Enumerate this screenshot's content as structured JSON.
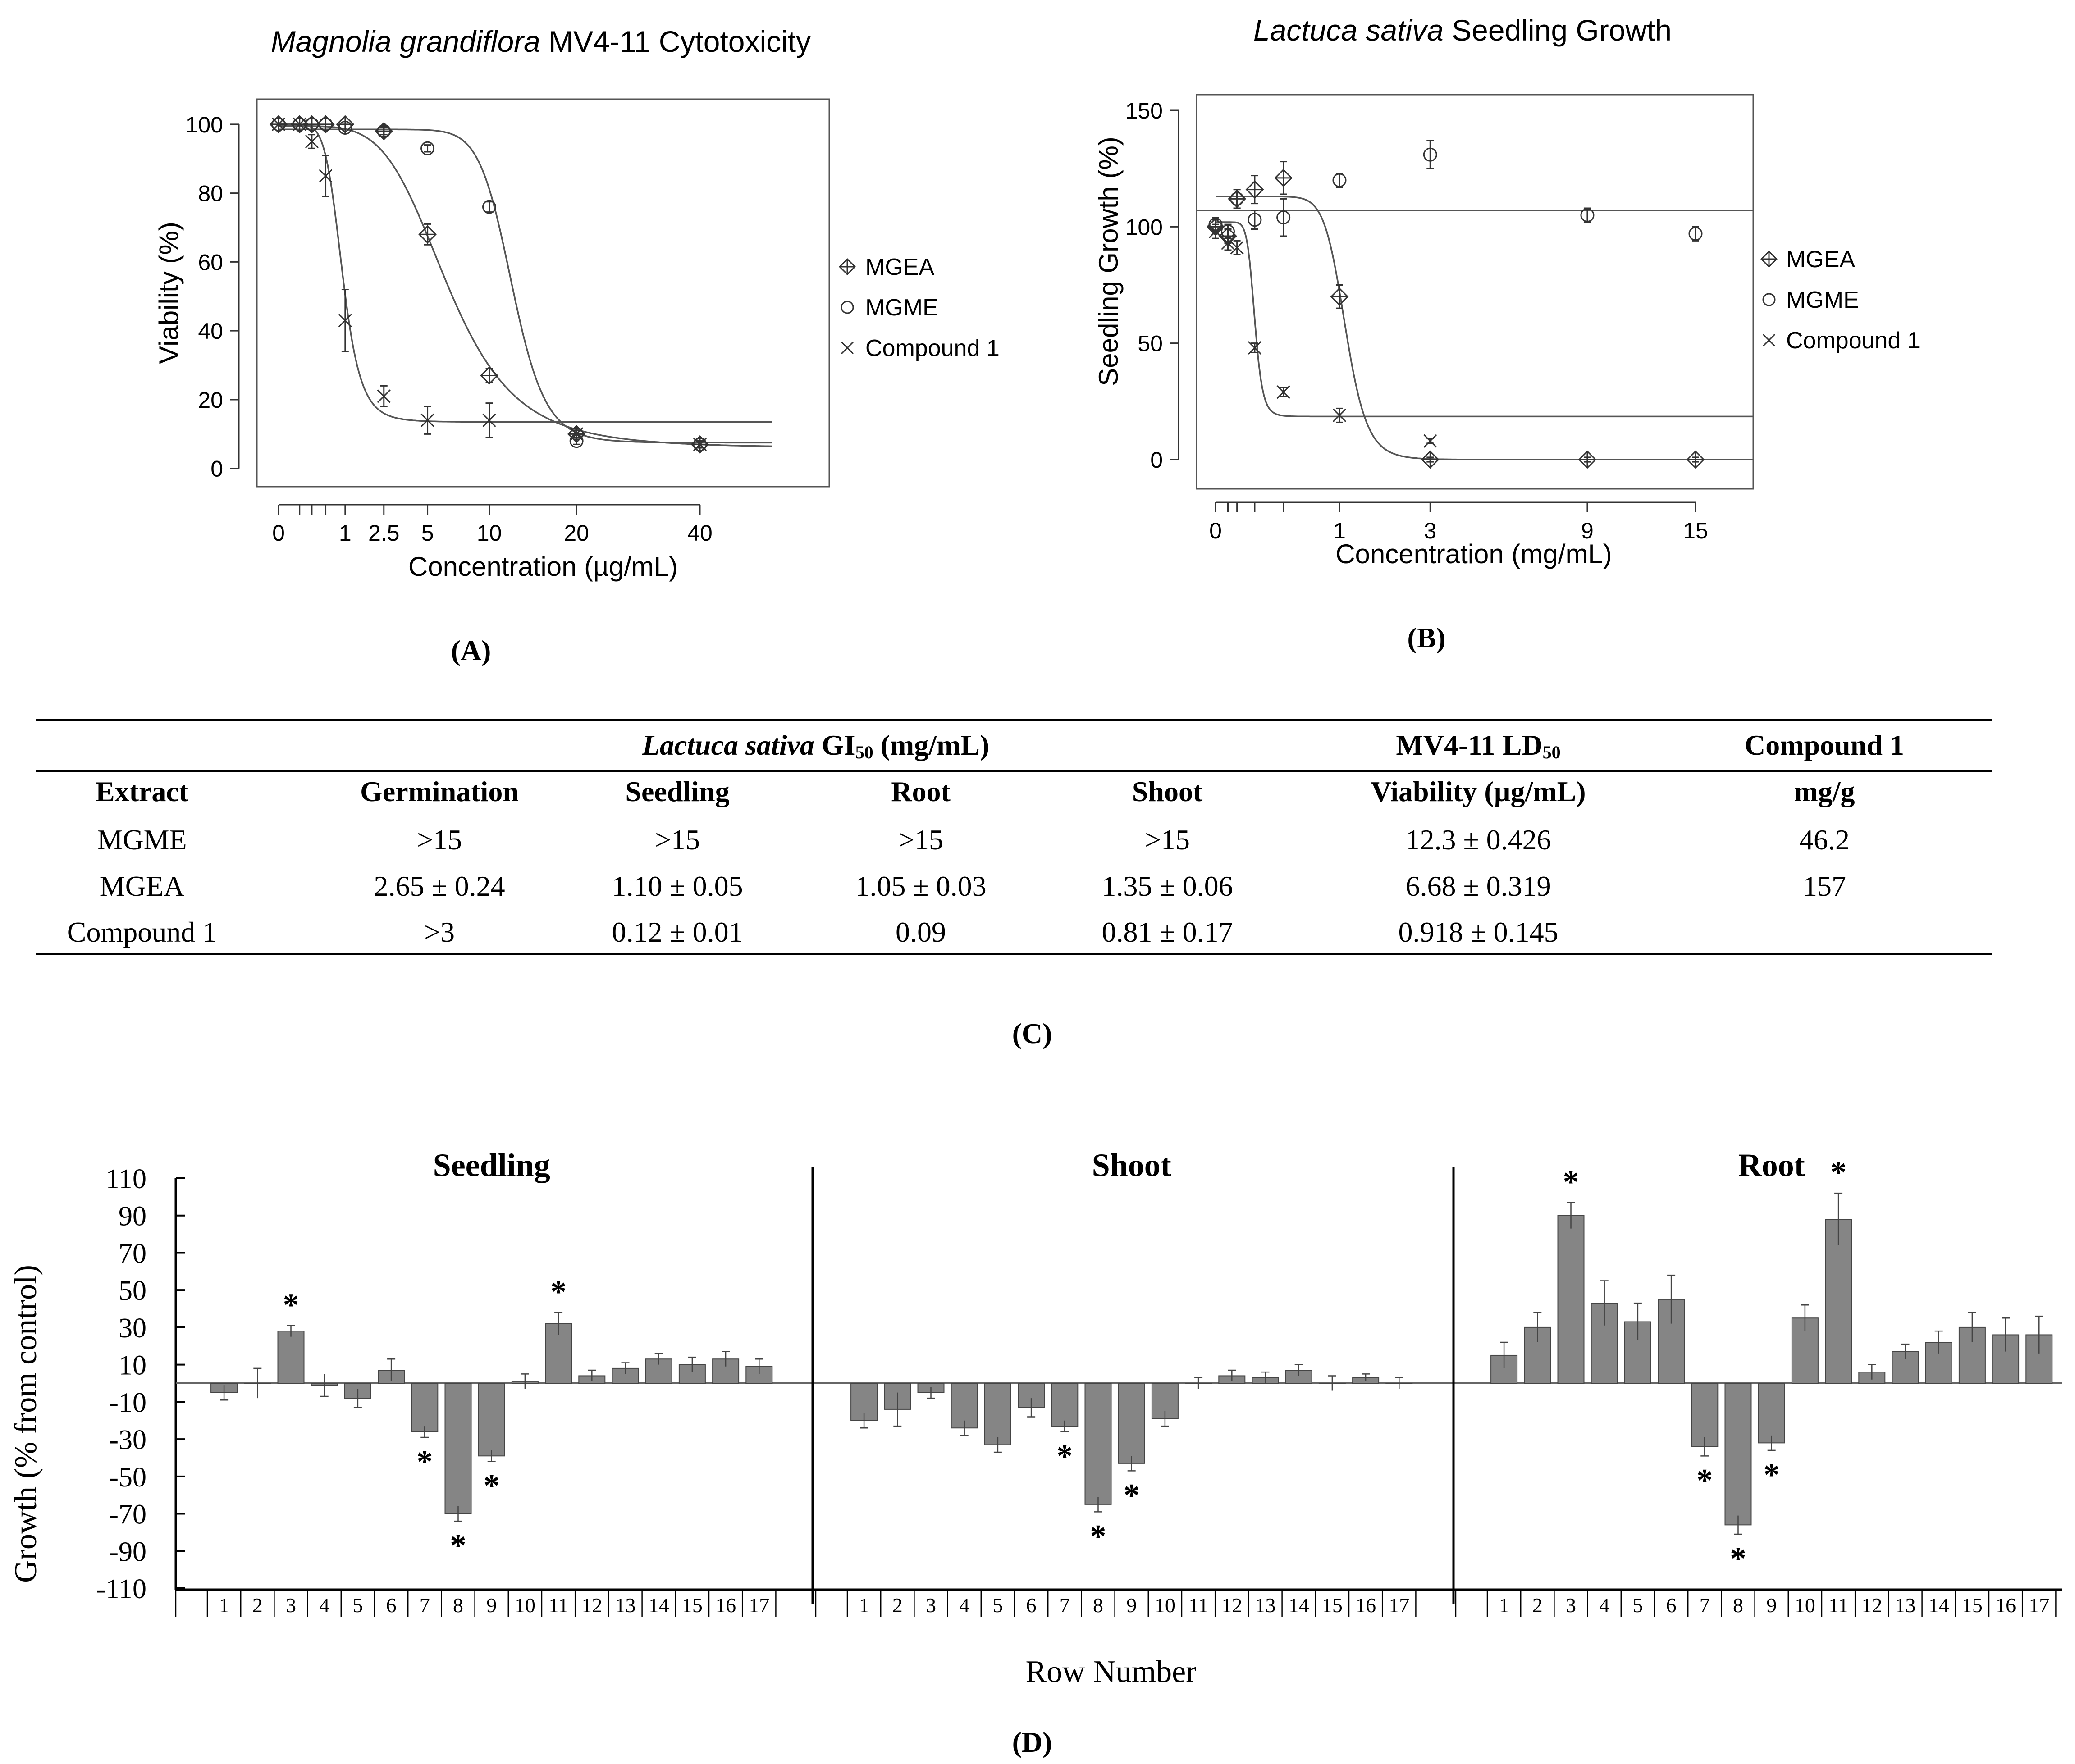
{
  "chart_data": [
    {
      "id": "A",
      "type": "scatter",
      "title_italic": "Magnolia grandiflora",
      "title_rest": " MV4-11 Cytotoxicity",
      "xlabel": "Concentration (µg/mL)",
      "ylabel": "Viability (%)",
      "ylim": [
        0,
        105
      ],
      "x_tick_labels": [
        "0",
        "1",
        "2.5",
        "5",
        "10",
        "20",
        "40"
      ],
      "y_ticks": [
        0,
        20,
        40,
        60,
        80,
        100
      ],
      "legend": [
        "MGEA",
        "MGME",
        "Compound 1"
      ],
      "series": [
        {
          "name": "MGEA",
          "marker": "diamond-plus",
          "x": [
            0,
            0.1,
            0.25,
            0.5,
            1,
            2.5,
            5,
            10,
            20,
            40
          ],
          "y": [
            100,
            100,
            100,
            100,
            100,
            98,
            68,
            27,
            10,
            7
          ],
          "err": [
            0,
            0,
            0,
            0,
            0,
            1.5,
            3,
            2,
            1.5,
            1
          ]
        },
        {
          "name": "MGME",
          "marker": "circle",
          "x": [
            0,
            0.1,
            0.25,
            0.5,
            1,
            2.5,
            5,
            10,
            20,
            40
          ],
          "y": [
            100,
            100,
            100,
            100,
            99,
            98,
            93,
            76,
            8,
            7
          ],
          "err": [
            0,
            0,
            0,
            0,
            0,
            1,
            1,
            1.5,
            1,
            1
          ]
        },
        {
          "name": "Compound 1",
          "marker": "x",
          "x": [
            0,
            0.1,
            0.25,
            0.5,
            1,
            2.5,
            5,
            10,
            20,
            40
          ],
          "y": [
            100,
            100,
            95,
            85,
            43,
            21,
            14,
            14,
            10,
            7
          ],
          "err": [
            0,
            0,
            2,
            6,
            9,
            3,
            4,
            5,
            1,
            1
          ]
        }
      ]
    },
    {
      "id": "B",
      "type": "scatter",
      "title_italic": "Lactuca sativa",
      "title_rest": " Seedling Growth",
      "xlabel": "Concentration (mg/mL)",
      "ylabel": "Seedling Growth (%)",
      "ylim": [
        -5,
        155
      ],
      "x_tick_labels": [
        "0",
        "1",
        "3",
        "9",
        "15"
      ],
      "y_ticks": [
        0,
        50,
        100,
        150
      ],
      "legend": [
        "MGEA",
        "MGME",
        "Compound 1"
      ],
      "series": [
        {
          "name": "MGEA",
          "marker": "diamond-plus",
          "x": [
            0,
            0.01,
            0.03,
            0.1,
            0.3,
            1,
            3,
            9,
            15
          ],
          "y": [
            100,
            96,
            112,
            116,
            121,
            70,
            0,
            0,
            0
          ],
          "err": [
            3,
            3,
            4,
            6,
            7,
            5,
            1,
            1,
            1
          ]
        },
        {
          "name": "MGME",
          "marker": "circle",
          "x": [
            0,
            0.01,
            0.03,
            0.1,
            0.3,
            1,
            3,
            9,
            15
          ],
          "y": [
            101,
            98,
            112,
            103,
            104,
            120,
            131,
            105,
            97
          ],
          "err": [
            3,
            3,
            4,
            4,
            8,
            3,
            6,
            3,
            3
          ]
        },
        {
          "name": "Compound 1",
          "marker": "x",
          "x": [
            0,
            0.01,
            0.03,
            0.1,
            0.3,
            1,
            3
          ],
          "y": [
            98,
            93,
            91,
            48,
            29,
            19,
            8
          ],
          "err": [
            3,
            3,
            3,
            2,
            2,
            3,
            1
          ]
        }
      ]
    },
    {
      "id": "D",
      "type": "bar",
      "ylabel": "Growth (% from control)",
      "xlabel": "Row Number",
      "ylim": [
        -110,
        110
      ],
      "y_ticks": [
        110,
        90,
        70,
        50,
        30,
        10,
        -10,
        -30,
        -50,
        -70,
        -90,
        -110
      ],
      "categories": [
        "1",
        "2",
        "3",
        "4",
        "5",
        "6",
        "7",
        "8",
        "9",
        "10",
        "11",
        "12",
        "13",
        "14",
        "15",
        "16",
        "17"
      ],
      "panels": [
        {
          "title": "Seedling",
          "values": [
            -5,
            0,
            28,
            -1,
            -8,
            7,
            -26,
            -70,
            -39,
            1,
            32,
            4,
            8,
            13,
            10,
            13,
            9
          ],
          "err": [
            4,
            8,
            3,
            6,
            5,
            6,
            3,
            4,
            3,
            4,
            6,
            3,
            3,
            3,
            4,
            4,
            4
          ],
          "significant": [
            3,
            7,
            8,
            9,
            11
          ]
        },
        {
          "title": "Shoot",
          "values": [
            -20,
            -14,
            -5,
            -24,
            -33,
            -13,
            -23,
            -65,
            -43,
            -19,
            0,
            4,
            3,
            7,
            0,
            3,
            0
          ],
          "err": [
            4,
            9,
            3,
            4,
            4,
            5,
            3,
            4,
            4,
            4,
            3,
            3,
            3,
            3,
            4,
            2,
            3
          ],
          "significant": [
            7,
            8,
            9
          ]
        },
        {
          "title": "Root",
          "values": [
            15,
            30,
            90,
            43,
            33,
            45,
            -34,
            -76,
            -32,
            35,
            88,
            6,
            17,
            22,
            30,
            26,
            26
          ],
          "err": [
            7,
            8,
            7,
            12,
            10,
            13,
            5,
            5,
            4,
            7,
            14,
            4,
            4,
            6,
            8,
            9,
            10
          ],
          "significant": [
            3,
            7,
            8,
            9,
            11
          ]
        }
      ]
    }
  ],
  "panel_labels": {
    "a": "(A)",
    "b": "(B)",
    "c": "(C)",
    "d": "(D)"
  },
  "table": {
    "group_italic": "Lactuca sativa",
    "group_rest": " GI",
    "group_sub": "50",
    "group_unit": " (mg/mL)",
    "ld_title": "MV4-11 LD",
    "ld_sub": "50",
    "compound_title": "Compound 1",
    "headers": [
      "Extract",
      "Germination",
      "Seedling",
      "Root",
      "Shoot",
      "Viability (µg/mL)",
      "mg/g"
    ],
    "rows": [
      [
        "MGME",
        ">15",
        ">15",
        ">15",
        ">15",
        "12.3 ± 0.426",
        "46.2"
      ],
      [
        "MGEA",
        "2.65 ± 0.24",
        "1.10 ± 0.05",
        "1.05 ± 0.03",
        "1.35 ± 0.06",
        "6.68 ± 0.319",
        "157"
      ],
      [
        "Compound 1",
        ">3",
        "0.12 ± 0.01",
        "0.09",
        "0.81 ± 0.17",
        "0.918 ± 0.145",
        ""
      ]
    ]
  }
}
